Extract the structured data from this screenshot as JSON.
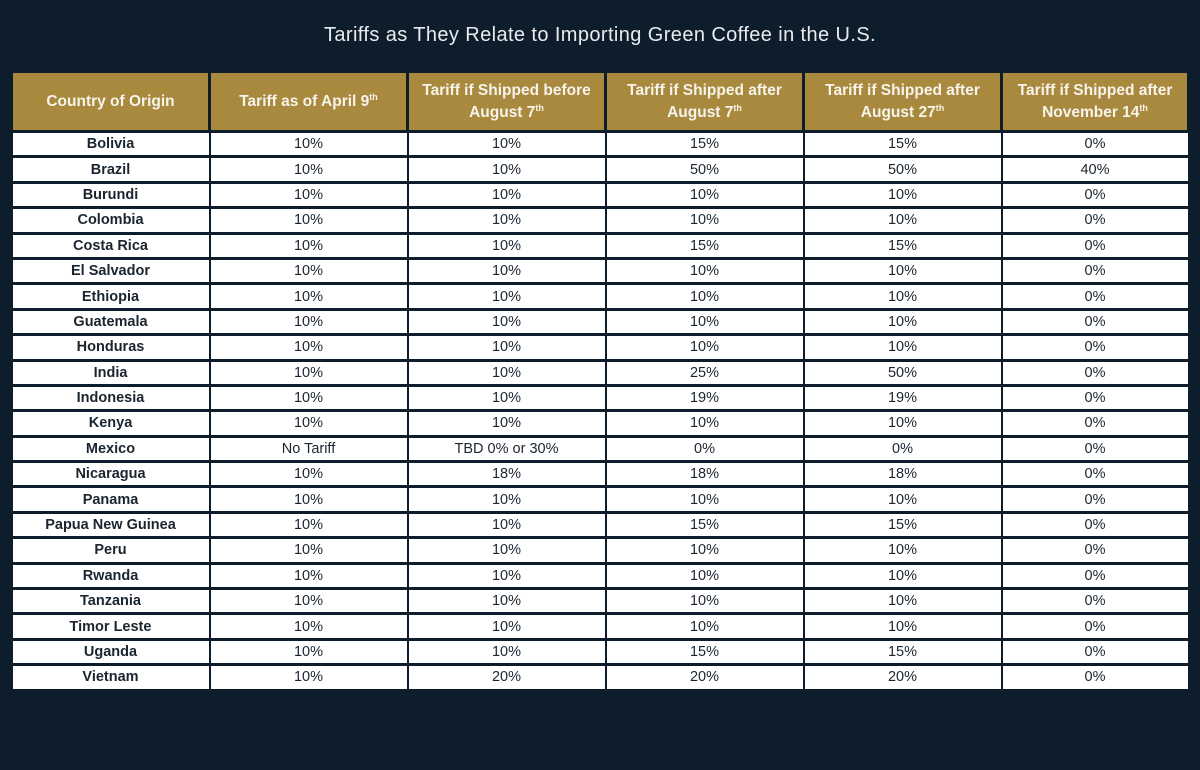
{
  "title": "Tariffs as They Relate to Importing Green Coffee in the U.S.",
  "colors": {
    "background_navy": "#0e1d2b",
    "header_gold": "#a8893d",
    "cell_white": "#ffffff",
    "body_text": "#1a2530",
    "title_text": "#e9ecef",
    "header_text": "#f7f4ec"
  },
  "chart_data": {
    "type": "table",
    "title": "Tariffs as They Relate to Importing Green Coffee in the U.S.",
    "columns": [
      {
        "label": "Country of Origin",
        "sup": ""
      },
      {
        "label": "Tariff as of April 9",
        "sup": "th"
      },
      {
        "label": "Tariff if Shipped before August 7",
        "sup": "th"
      },
      {
        "label": "Tariff if Shipped after August 7",
        "sup": "th"
      },
      {
        "label": "Tariff if Shipped after August 27",
        "sup": "th"
      },
      {
        "label": "Tariff if Shipped after November 14",
        "sup": "th"
      }
    ],
    "rows": [
      [
        "Bolivia",
        "10%",
        "10%",
        "15%",
        "15%",
        "0%"
      ],
      [
        "Brazil",
        "10%",
        "10%",
        "50%",
        "50%",
        "40%"
      ],
      [
        "Burundi",
        "10%",
        "10%",
        "10%",
        "10%",
        "0%"
      ],
      [
        "Colombia",
        "10%",
        "10%",
        "10%",
        "10%",
        "0%"
      ],
      [
        "Costa Rica",
        "10%",
        "10%",
        "15%",
        "15%",
        "0%"
      ],
      [
        "El Salvador",
        "10%",
        "10%",
        "10%",
        "10%",
        "0%"
      ],
      [
        "Ethiopia",
        "10%",
        "10%",
        "10%",
        "10%",
        "0%"
      ],
      [
        "Guatemala",
        "10%",
        "10%",
        "10%",
        "10%",
        "0%"
      ],
      [
        "Honduras",
        "10%",
        "10%",
        "10%",
        "10%",
        "0%"
      ],
      [
        "India",
        "10%",
        "10%",
        "25%",
        "50%",
        "0%"
      ],
      [
        "Indonesia",
        "10%",
        "10%",
        "19%",
        "19%",
        "0%"
      ],
      [
        "Kenya",
        "10%",
        "10%",
        "10%",
        "10%",
        "0%"
      ],
      [
        "Mexico",
        "No Tariff",
        "TBD 0% or 30%",
        "0%",
        "0%",
        "0%"
      ],
      [
        "Nicaragua",
        "10%",
        "18%",
        "18%",
        "18%",
        "0%"
      ],
      [
        "Panama",
        "10%",
        "10%",
        "10%",
        "10%",
        "0%"
      ],
      [
        "Papua New Guinea",
        "10%",
        "10%",
        "15%",
        "15%",
        "0%"
      ],
      [
        "Peru",
        "10%",
        "10%",
        "10%",
        "10%",
        "0%"
      ],
      [
        "Rwanda",
        "10%",
        "10%",
        "10%",
        "10%",
        "0%"
      ],
      [
        "Tanzania",
        "10%",
        "10%",
        "10%",
        "10%",
        "0%"
      ],
      [
        "Timor Leste",
        "10%",
        "10%",
        "10%",
        "10%",
        "0%"
      ],
      [
        "Uganda",
        "10%",
        "10%",
        "15%",
        "15%",
        "0%"
      ],
      [
        "Vietnam",
        "10%",
        "20%",
        "20%",
        "20%",
        "0%"
      ]
    ]
  }
}
